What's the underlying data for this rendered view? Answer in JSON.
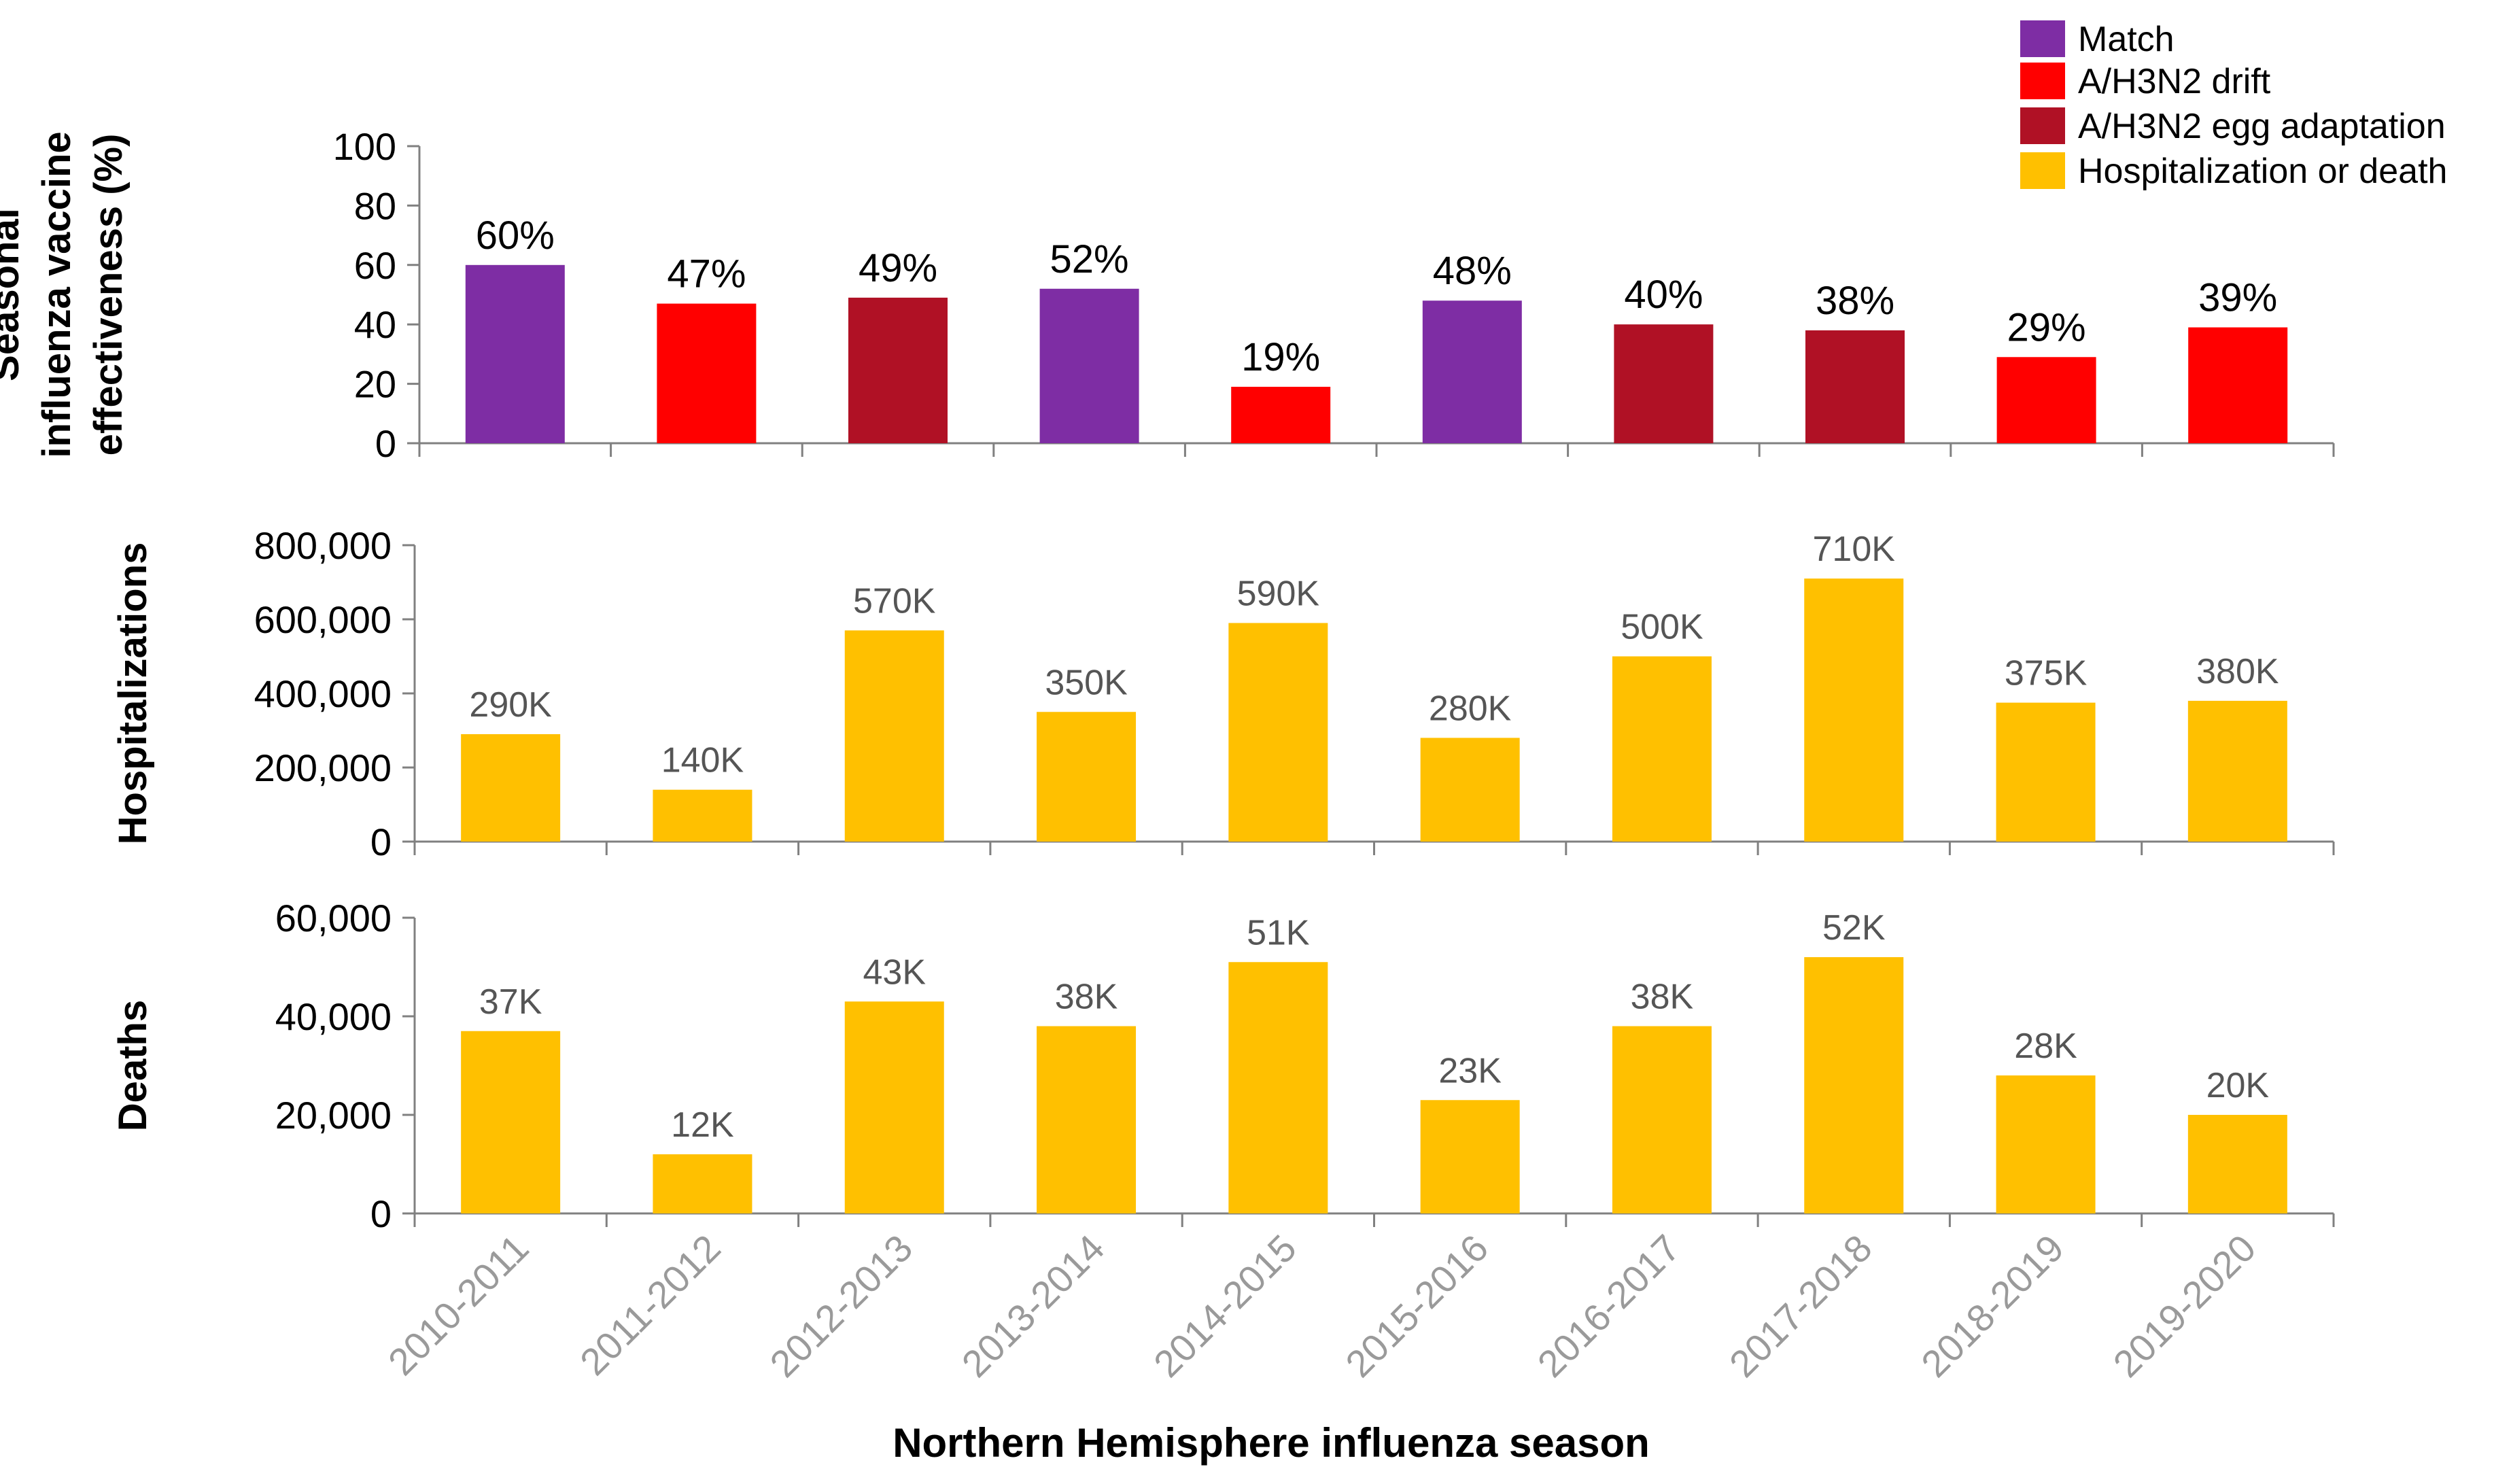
{
  "colors": {
    "match": "#7E2DA4",
    "drift": "#FF0000",
    "egg": "#B01125",
    "hosp": "#FFC000",
    "axis": "#808080"
  },
  "legend": [
    {
      "label": "Match",
      "color_key": "match"
    },
    {
      "label": "A/H3N2 drift",
      "color_key": "drift"
    },
    {
      "label": "A/H3N2 egg adaptation",
      "color_key": "egg"
    },
    {
      "label": "Hospitalization or death",
      "color_key": "hosp"
    }
  ],
  "chart_data": [
    {
      "type": "bar",
      "categories": [
        "2010-2011",
        "2011-2012",
        "2012-2013",
        "2013-2014",
        "2014-2015",
        "2015-2016",
        "2016-2017",
        "2017-2018",
        "2018-2019",
        "2019-2020"
      ],
      "values": [
        60,
        47,
        49,
        52,
        19,
        48,
        40,
        38,
        29,
        39
      ],
      "data_labels": [
        "60%",
        "47%",
        "49%",
        "52%",
        "19%",
        "48%",
        "40%",
        "38%",
        "29%",
        "39%"
      ],
      "bar_color_keys": [
        "match",
        "drift",
        "egg",
        "match",
        "drift",
        "match",
        "egg",
        "egg",
        "drift",
        "drift"
      ],
      "ylabel_lines": [
        "Seasonal",
        "influenza vaccine",
        "effectiveness (%)"
      ],
      "ylim": [
        0,
        100
      ],
      "yticks": [
        0,
        20,
        40,
        60,
        80,
        100
      ],
      "ytick_labels": [
        "0",
        "20",
        "40",
        "60",
        "80",
        "100"
      ]
    },
    {
      "type": "bar",
      "categories": [
        "2010-2011",
        "2011-2012",
        "2012-2013",
        "2013-2014",
        "2014-2015",
        "2015-2016",
        "2016-2017",
        "2017-2018",
        "2018-2019",
        "2019-2020"
      ],
      "values": [
        290000,
        140000,
        570000,
        350000,
        590000,
        280000,
        500000,
        710000,
        375000,
        380000
      ],
      "data_labels": [
        "290K",
        "140K",
        "570K",
        "350K",
        "590K",
        "280K",
        "500K",
        "710K",
        "375K",
        "380K"
      ],
      "ylabel_lines": [
        "Hospitalizations"
      ],
      "ylim": [
        0,
        800000
      ],
      "yticks": [
        0,
        200000,
        400000,
        600000,
        800000
      ],
      "ytick_labels": [
        "0",
        "200,000",
        "400,000",
        "600,000",
        "800,000"
      ]
    },
    {
      "type": "bar",
      "categories": [
        "2010-2011",
        "2011-2012",
        "2012-2013",
        "2013-2014",
        "2014-2015",
        "2015-2016",
        "2016-2017",
        "2017-2018",
        "2018-2019",
        "2019-2020"
      ],
      "values": [
        37000,
        12000,
        43000,
        38000,
        51000,
        23000,
        38000,
        52000,
        28000,
        20000
      ],
      "data_labels": [
        "37K",
        "12K",
        "43K",
        "38K",
        "51K",
        "23K",
        "38K",
        "52K",
        "28K",
        "20K"
      ],
      "ylabel_lines": [
        "Deaths"
      ],
      "ylim": [
        0,
        60000
      ],
      "yticks": [
        0,
        20000,
        40000,
        60000
      ],
      "ytick_labels": [
        "0",
        "20,000",
        "40,000",
        "60,000"
      ]
    }
  ],
  "xaxis": {
    "title": "Northern Hemisphere influenza season",
    "categories": [
      "2010-2011",
      "2011-2012",
      "2012-2013",
      "2013-2014",
      "2014-2015",
      "2015-2016",
      "2016-2017",
      "2017-2018",
      "2018-2019",
      "2019-2020"
    ]
  }
}
